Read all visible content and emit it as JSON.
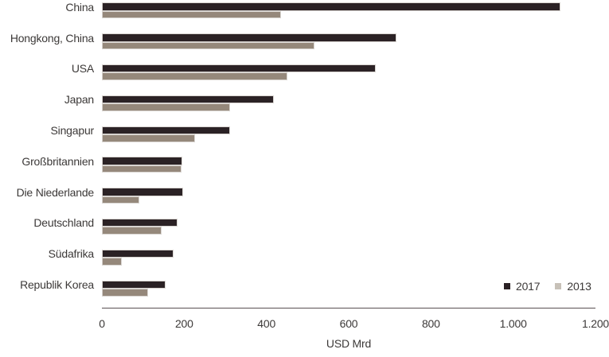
{
  "chart_data": {
    "type": "bar",
    "orientation": "horizontal",
    "title": "",
    "xlabel": "USD Mrd",
    "xlim": [
      0,
      1200
    ],
    "grid": false,
    "xticks": [
      {
        "value": 0,
        "label": "0"
      },
      {
        "value": 200,
        "label": "200"
      },
      {
        "value": 400,
        "label": "400"
      },
      {
        "value": 600,
        "label": "600"
      },
      {
        "value": 800,
        "label": "800"
      },
      {
        "value": 1000,
        "label": "1.000"
      },
      {
        "value": 1200,
        "label": "1.200"
      }
    ],
    "categories": [
      "China",
      "Hongkong, China",
      "USA",
      "Japan",
      "Singapur",
      "Großbritannien",
      "Die Niederlande",
      "Deutschland",
      "Südafrika",
      "Republik Korea"
    ],
    "series": [
      {
        "name": "2017",
        "color": "#2b2225",
        "legend_color": "#2b2225",
        "values": [
          1115,
          716,
          666,
          418,
          312,
          196,
          198,
          184,
          174,
          155
        ]
      },
      {
        "name": "2013",
        "color": "#95887b",
        "legend_color": "#c7c1b8",
        "values": [
          435,
          517,
          451,
          312,
          226,
          194,
          91,
          145,
          48,
          112
        ]
      }
    ],
    "legend": {
      "position": "bottom-right",
      "labels": [
        "2017",
        "2013"
      ]
    }
  },
  "colors": {
    "text": "#3c3938",
    "axis": "#595052",
    "background": "#ffffff"
  }
}
